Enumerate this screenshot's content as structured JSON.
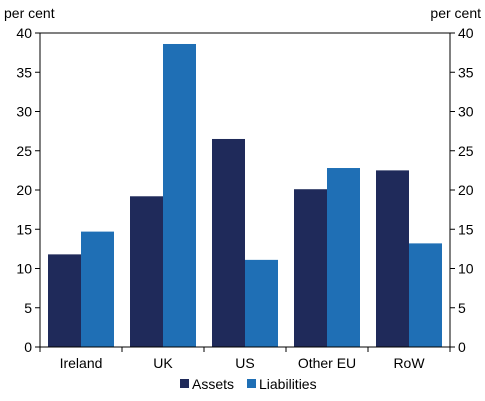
{
  "chart_data": {
    "type": "bar",
    "left_axis_unit": "per cent",
    "right_axis_unit": "per cent",
    "categories": [
      "Ireland",
      "UK",
      "US",
      "Other EU",
      "RoW"
    ],
    "series": [
      {
        "name": "Assets",
        "values": [
          11.8,
          19.2,
          26.5,
          20.1,
          22.5
        ],
        "color": "#1f2a5a"
      },
      {
        "name": "Liabilities",
        "values": [
          14.7,
          38.6,
          11.1,
          22.8,
          13.2
        ],
        "color": "#1f6fb5"
      }
    ],
    "ylim": [
      0,
      40
    ],
    "yticks": [
      0,
      5,
      10,
      15,
      20,
      25,
      30,
      35,
      40
    ],
    "grid": false,
    "legend_position": "bottom"
  }
}
